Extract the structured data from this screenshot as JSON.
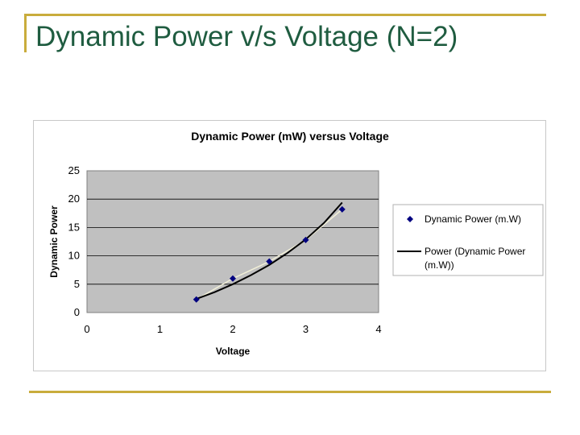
{
  "slide": {
    "title": "Dynamic Power v/s Voltage (N=2)"
  },
  "colors": {
    "accent": "#c9ac3c",
    "title": "#1f5c40",
    "plot_area": "#c0c0c0",
    "marker": "#000080",
    "trendline": "#000000"
  },
  "chart_data": {
    "type": "scatter",
    "title": "Dynamic Power (mW) versus Voltage",
    "xlabel": "Voltage",
    "ylabel": "Dynamic Power",
    "xlim": [
      0,
      4
    ],
    "ylim": [
      0,
      25
    ],
    "x_ticks": [
      "0",
      "1",
      "2",
      "3",
      "4"
    ],
    "y_ticks": [
      "0",
      "5",
      "10",
      "15",
      "20",
      "25"
    ],
    "grid": true,
    "legend_position": "right",
    "series": [
      {
        "name": "Dynamic Power (m.W)",
        "kind": "markers",
        "marker": "diamond",
        "color": "#000080",
        "points": [
          [
            1.5,
            2.3
          ],
          [
            2.0,
            6.0
          ],
          [
            2.5,
            9.0
          ],
          [
            3.0,
            12.8
          ],
          [
            3.5,
            18.2
          ]
        ]
      },
      {
        "name": "Power (Dynamic Power (m.W))",
        "kind": "trendline",
        "color": "#000000",
        "points": [
          [
            1.5,
            2.4
          ],
          [
            1.75,
            3.6
          ],
          [
            2.0,
            5.0
          ],
          [
            2.25,
            6.6
          ],
          [
            2.5,
            8.4
          ],
          [
            2.75,
            10.5
          ],
          [
            3.0,
            12.9
          ],
          [
            3.25,
            15.8
          ],
          [
            3.5,
            19.4
          ]
        ]
      }
    ]
  }
}
